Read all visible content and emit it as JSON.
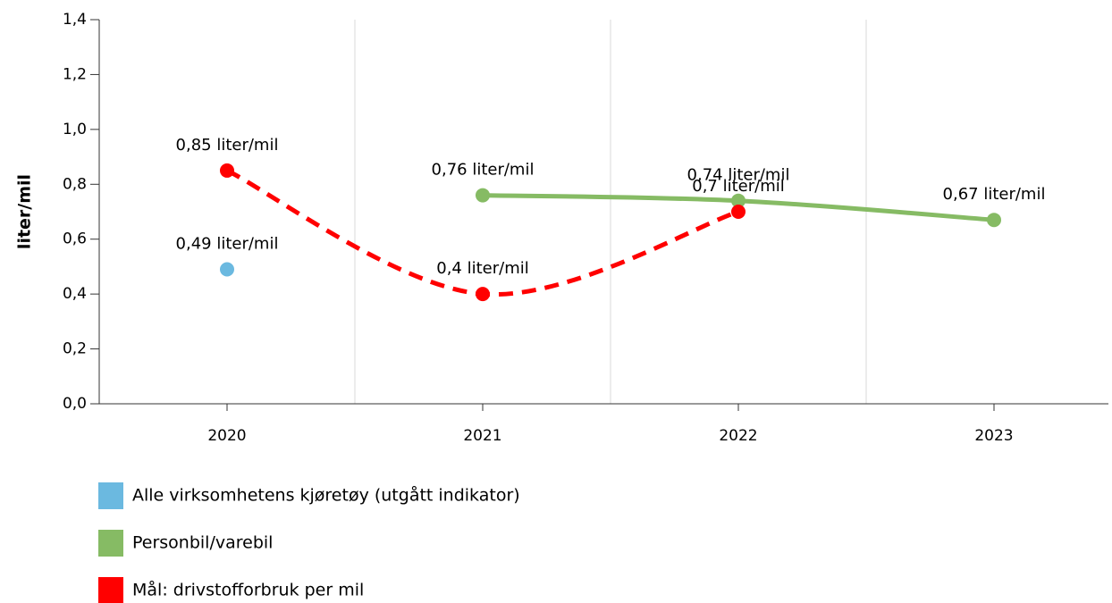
{
  "chart_data": {
    "type": "line",
    "y_label": "liter/mil",
    "categories": [
      "2020",
      "2021",
      "2022",
      "2023"
    ],
    "series": [
      {
        "name": "Alle virksomhetens kjøretøy (utgått indikator)",
        "color": "#6bb9e0",
        "values": [
          0.49,
          null,
          null,
          null
        ],
        "value_labels": [
          "0,49 liter/mil",
          null,
          null,
          null
        ]
      },
      {
        "name": "Personbil/varebil",
        "color": "#86bb64",
        "values": [
          null,
          0.76,
          0.74,
          0.67
        ],
        "value_labels": [
          null,
          "0,76 liter/mil",
          "0,74 liter/mil",
          "0,67 liter/mil"
        ]
      },
      {
        "name": "Mål: drivstofforbruk per mil",
        "color": "#ff0000",
        "dashed": true,
        "values": [
          0.85,
          0.4,
          0.7,
          null
        ],
        "value_labels": [
          "0,85 liter/mil",
          "0,4 liter/mil",
          "0,7 liter/mil",
          null
        ]
      }
    ],
    "ylim": [
      0,
      1.4
    ],
    "yticks": [
      {
        "value": 0,
        "label": "0,0"
      },
      {
        "value": 0.2,
        "label": "0,2"
      },
      {
        "value": 0.4,
        "label": "0,4"
      },
      {
        "value": 0.6,
        "label": "0,6"
      },
      {
        "value": 0.8,
        "label": "0,8"
      },
      {
        "value": 1.0,
        "label": "1,0"
      },
      {
        "value": 1.2,
        "label": "1,2"
      },
      {
        "value": 1.4,
        "label": "1,4"
      }
    ],
    "grid": "x"
  }
}
